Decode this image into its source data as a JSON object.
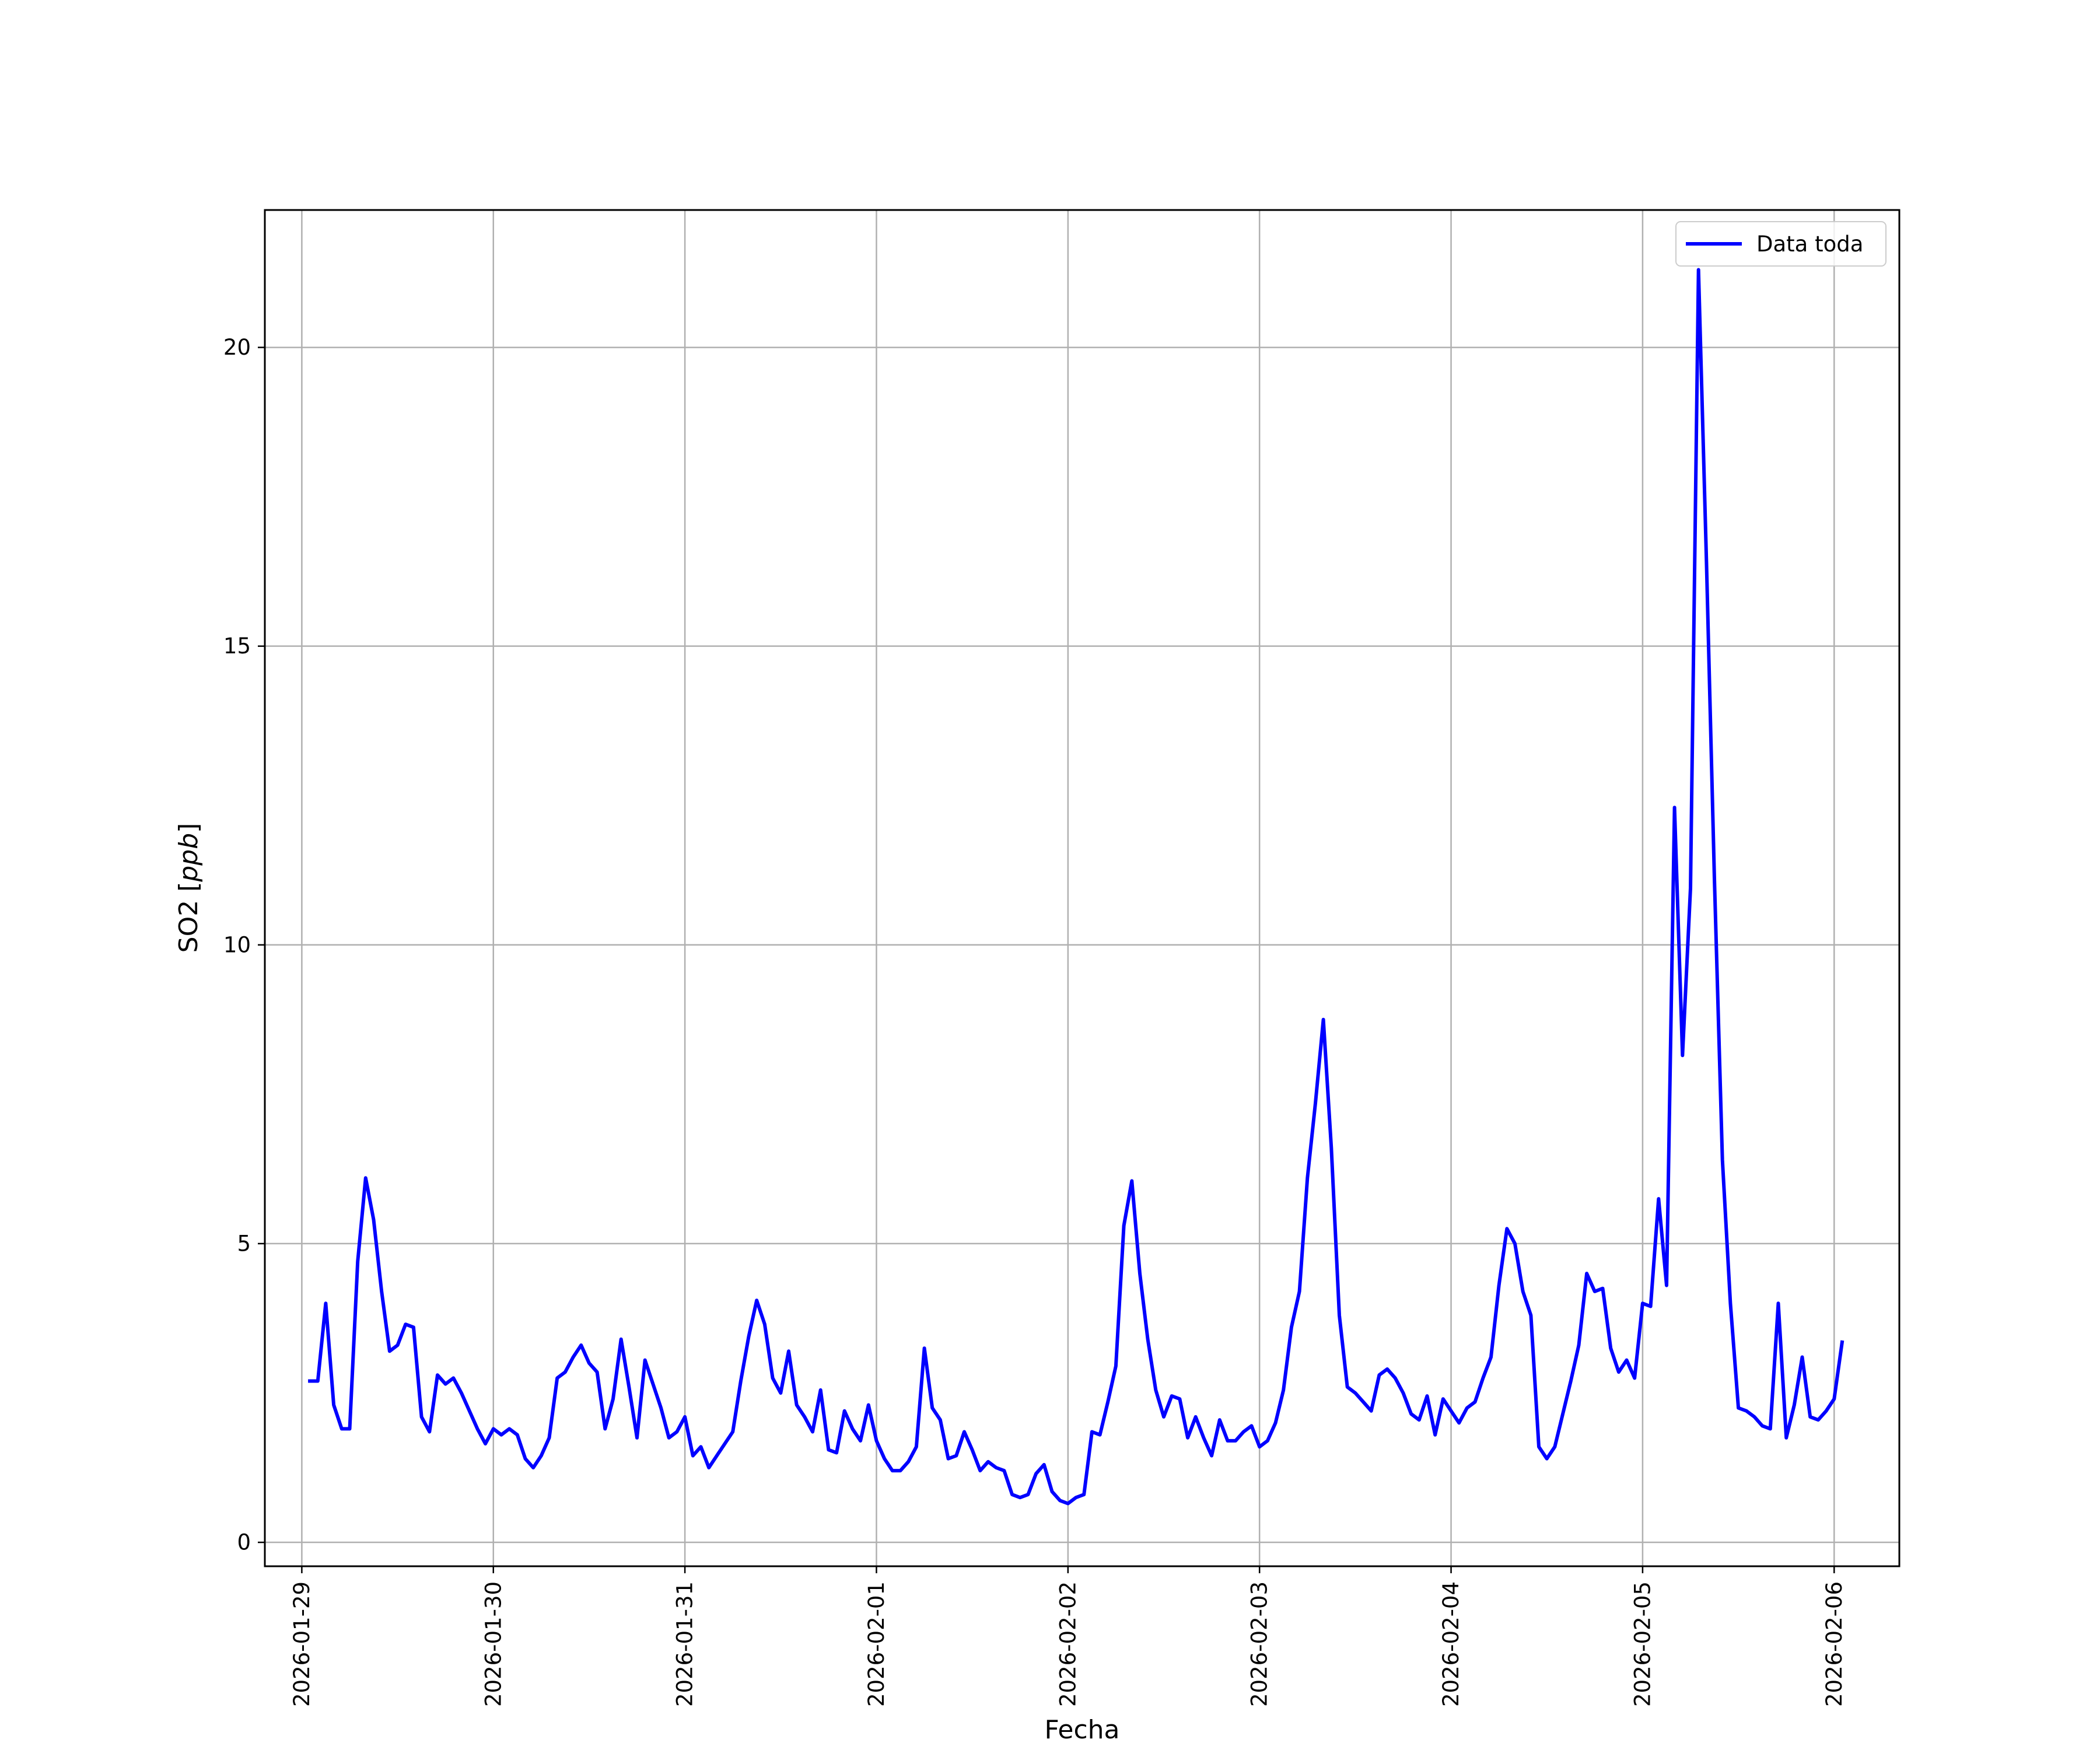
{
  "chart_data": {
    "type": "line",
    "xlabel": "Fecha",
    "ylabel_main": "SO2 [",
    "ylabel_unit": "ppb",
    "ylabel_close": "]",
    "grid": true,
    "legend_placement": "top-right",
    "x_domain": [
      "2026-01-28T19:22",
      "2026-02-06T08:10"
    ],
    "ylim": [
      -0.4,
      22.3
    ],
    "xticks": [
      {
        "date": "2026-01-29",
        "label": "2026-01-29"
      },
      {
        "date": "2026-01-30",
        "label": "2026-01-30"
      },
      {
        "date": "2026-01-31",
        "label": "2026-01-31"
      },
      {
        "date": "2026-02-01",
        "label": "2026-02-01"
      },
      {
        "date": "2026-02-02",
        "label": "2026-02-02"
      },
      {
        "date": "2026-02-03",
        "label": "2026-02-03"
      },
      {
        "date": "2026-02-04",
        "label": "2026-02-04"
      },
      {
        "date": "2026-02-05",
        "label": "2026-02-05"
      },
      {
        "date": "2026-02-06",
        "label": "2026-02-06"
      }
    ],
    "yticks": [
      {
        "value": 0,
        "label": "0"
      },
      {
        "value": 5,
        "label": "5"
      },
      {
        "value": 10,
        "label": "10"
      },
      {
        "value": 15,
        "label": "15"
      },
      {
        "value": 20,
        "label": "20"
      }
    ],
    "colors": {
      "line": "#0000ff",
      "grid": "#b0b0b0",
      "axes": "#000000"
    },
    "series": [
      {
        "name": "Data toda",
        "x_start": "2026-01-29T01:00",
        "x_step_hours": 1,
        "values": [
          2.7,
          2.7,
          4.0,
          2.3,
          1.9,
          1.9,
          4.7,
          6.1,
          5.4,
          4.2,
          3.2,
          3.3,
          3.65,
          3.6,
          2.1,
          1.85,
          2.8,
          2.65,
          2.75,
          2.5,
          2.2,
          1.9,
          1.65,
          1.9,
          1.8,
          1.9,
          1.8,
          1.4,
          1.25,
          1.45,
          1.75,
          2.75,
          2.85,
          3.1,
          3.3,
          3.0,
          2.85,
          1.9,
          2.4,
          3.4,
          2.6,
          1.75,
          3.05,
          2.65,
          2.25,
          1.75,
          1.85,
          2.1,
          1.45,
          1.6,
          1.25,
          1.45,
          1.65,
          1.85,
          2.7,
          3.45,
          4.05,
          3.65,
          2.75,
          2.5,
          3.2,
          2.3,
          2.1,
          1.85,
          2.55,
          1.55,
          1.5,
          2.2,
          1.9,
          1.7,
          2.3,
          1.7,
          1.4,
          1.2,
          1.2,
          1.35,
          1.6,
          3.25,
          2.25,
          2.05,
          1.4,
          1.45,
          1.85,
          1.55,
          1.2,
          1.35,
          1.25,
          1.2,
          0.8,
          0.75,
          0.8,
          1.15,
          1.3,
          0.85,
          0.7,
          0.65,
          0.75,
          0.8,
          1.85,
          1.8,
          2.35,
          2.95,
          5.3,
          6.05,
          4.5,
          3.4,
          2.55,
          2.1,
          2.45,
          2.4,
          1.75,
          2.1,
          1.75,
          1.45,
          2.05,
          1.7,
          1.7,
          1.85,
          1.95,
          1.6,
          1.7,
          2.0,
          2.55,
          3.6,
          4.2,
          6.1,
          7.35,
          8.75,
          6.6,
          3.8,
          2.6,
          2.5,
          2.35,
          2.2,
          2.8,
          2.9,
          2.75,
          2.5,
          2.15,
          2.05,
          2.45,
          1.8,
          2.4,
          2.2,
          2.0,
          2.25,
          2.35,
          2.75,
          3.1,
          4.3,
          5.25,
          5.0,
          4.2,
          3.8,
          1.6,
          1.4,
          1.6,
          2.15,
          2.7,
          3.3,
          4.5,
          4.2,
          4.25,
          3.25,
          2.85,
          3.05,
          2.75,
          4.0,
          3.95,
          5.75,
          4.3,
          12.3,
          8.15,
          10.95,
          21.3,
          16.4,
          11.1,
          6.4,
          4.0,
          2.25,
          2.2,
          2.1,
          1.95,
          1.9,
          4.0,
          1.75,
          2.3,
          3.1,
          2.1,
          2.05,
          2.2,
          2.4,
          3.35
        ]
      }
    ]
  }
}
